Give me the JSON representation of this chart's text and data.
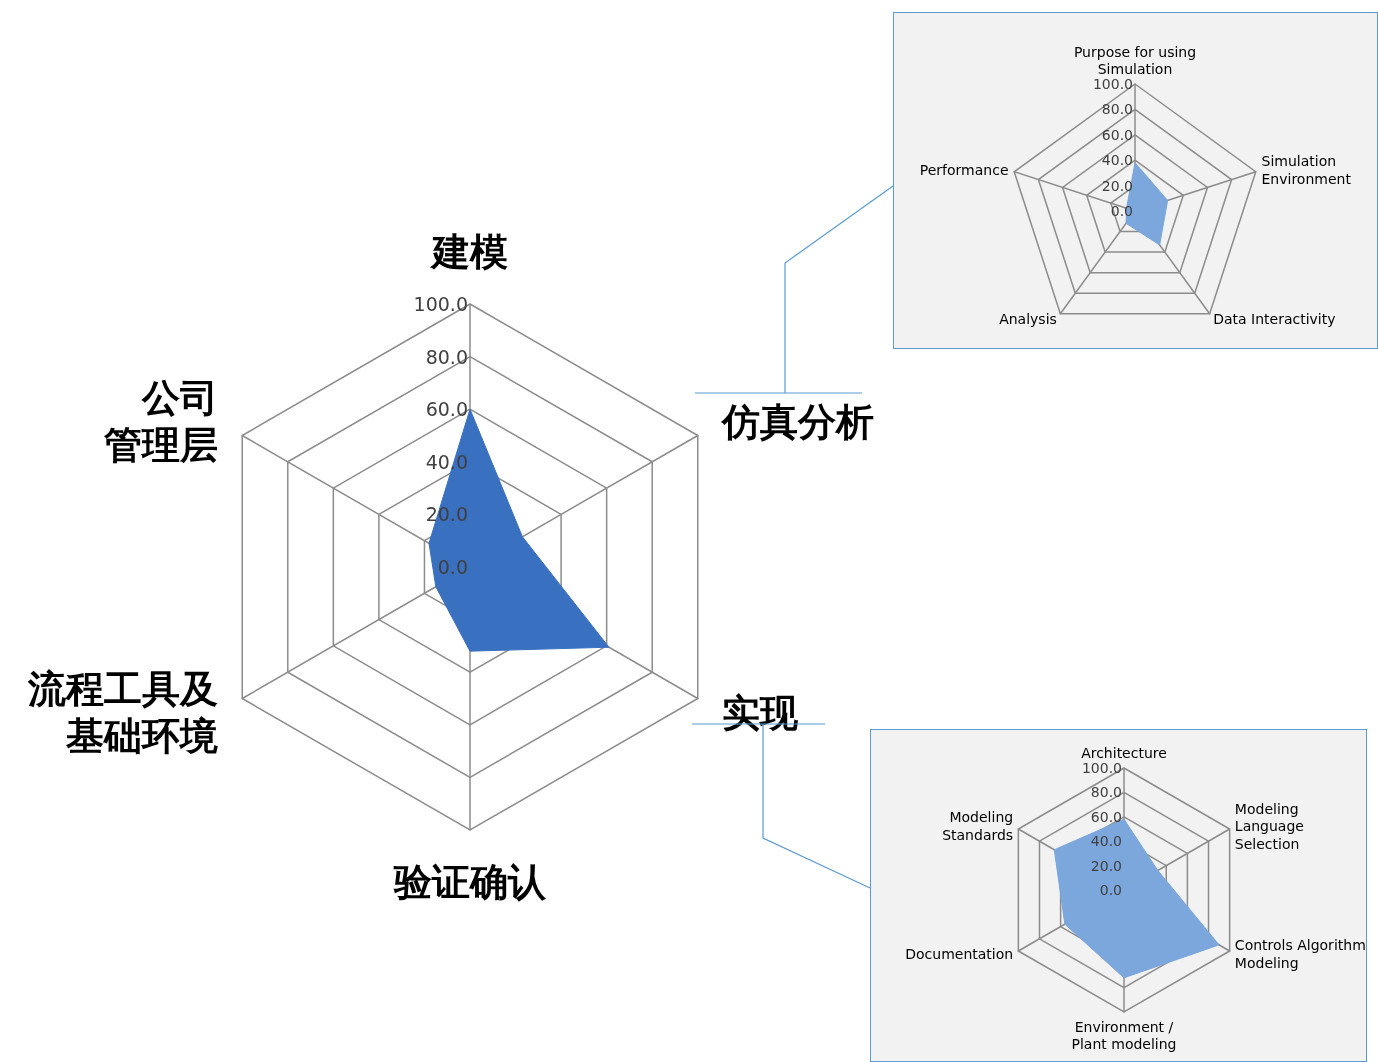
{
  "chart_data": [
    {
      "type": "radar",
      "categories": [
        "建模",
        "仿真分析",
        "实现",
        "验证确认",
        "流程工具及基础环境",
        "公司管理层"
      ],
      "ylim": [
        0,
        100
      ],
      "yticks": [
        {
          "value": 0,
          "label": "0.0"
        },
        {
          "value": 20,
          "label": "20.0"
        },
        {
          "value": 40,
          "label": "40.0"
        },
        {
          "value": 60,
          "label": "60.0"
        },
        {
          "value": 80,
          "label": "80.0"
        },
        {
          "value": 100,
          "label": "100.0"
        }
      ],
      "grid": true,
      "series": [
        {
          "color": "#3a70c0",
          "values": [
            60,
            23,
            61,
            32,
            15,
            18
          ]
        }
      ]
    },
    {
      "type": "radar",
      "categories": [
        "Purpose for using\nSimulation",
        "Simulation\nEnvironment",
        "Data Interactivity",
        "Analysis",
        "Performance"
      ],
      "ylim": [
        0,
        100
      ],
      "yticks": [
        {
          "value": 0,
          "label": "0.0"
        },
        {
          "value": 20,
          "label": "20.0"
        },
        {
          "value": 40,
          "label": "40.0"
        },
        {
          "value": 60,
          "label": "60.0"
        },
        {
          "value": 80,
          "label": "80.0"
        },
        {
          "value": 100,
          "label": "100.0"
        }
      ],
      "grid": true,
      "series": [
        {
          "color": "#7ba7dc",
          "values": [
            38,
            27,
            33,
            12,
            7
          ]
        }
      ]
    },
    {
      "type": "radar",
      "categories": [
        "Architecture",
        "Modeling\nLanguage\nSelection",
        "Controls Algorithm\nModeling",
        "Environment /\nPlant modeling",
        "Documentation",
        "Modeling\nStandards"
      ],
      "ylim": [
        0,
        100
      ],
      "yticks": [
        {
          "value": 0,
          "label": "0.0"
        },
        {
          "value": 20,
          "label": "20.0"
        },
        {
          "value": 40,
          "label": "40.0"
        },
        {
          "value": 60,
          "label": "60.0"
        },
        {
          "value": 80,
          "label": "80.0"
        },
        {
          "value": 100,
          "label": "100.0"
        }
      ],
      "grid": true,
      "series": [
        {
          "color": "#7ba7dc",
          "values": [
            58,
            32,
            90,
            72,
            56,
            66
          ]
        }
      ]
    }
  ]
}
